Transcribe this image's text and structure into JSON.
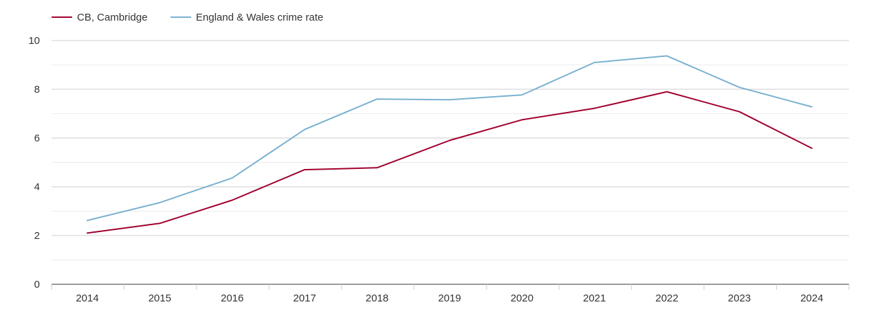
{
  "chart_data": {
    "type": "line",
    "title": "",
    "xlabel": "",
    "ylabel": "",
    "x": [
      "2014",
      "2015",
      "2016",
      "2017",
      "2018",
      "2019",
      "2020",
      "2021",
      "2022",
      "2023",
      "2024"
    ],
    "ylim": [
      0,
      10
    ],
    "yticks": [
      "0",
      "2",
      "4",
      "6",
      "8",
      "10"
    ],
    "grid": true,
    "legend_position": "top-left",
    "series": [
      {
        "name": "CB, Cambridge",
        "color": "#a0002c",
        "values": [
          2.1,
          2.5,
          3.45,
          4.7,
          4.78,
          5.9,
          6.75,
          7.22,
          7.9,
          7.08,
          5.58
        ]
      },
      {
        "name": "England & Wales crime rate",
        "color": "#7ab0d0",
        "values": [
          2.62,
          3.35,
          4.36,
          6.35,
          7.6,
          7.57,
          7.77,
          9.1,
          9.37,
          8.08,
          7.28
        ]
      }
    ]
  }
}
